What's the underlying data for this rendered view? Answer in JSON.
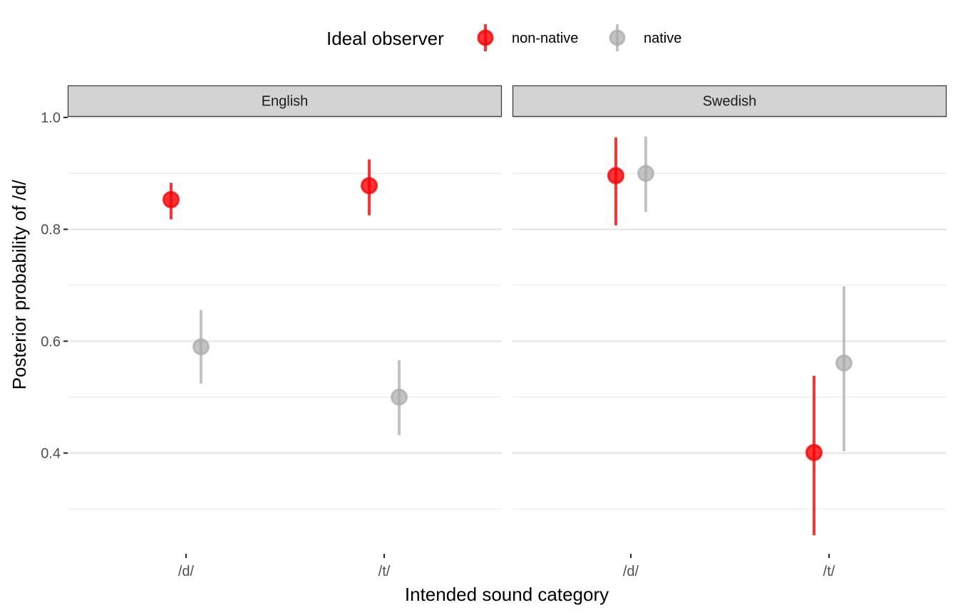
{
  "legend": {
    "title": "Ideal observer",
    "entries": [
      {
        "label": "non-native",
        "color": "#FF0000"
      },
      {
        "label": "native",
        "color": "#AAAAAA"
      }
    ]
  },
  "chart_data": {
    "type": "scatter",
    "subtype": "pointrange-faceted",
    "xlabel": "Intended sound category",
    "ylabel": "Posterior probability of /d/",
    "categories": [
      "/d/",
      "/t/"
    ],
    "ylim": [
      0.24,
      1.0
    ],
    "yticks": [
      0.4,
      0.6,
      0.8,
      1.0
    ],
    "ytick_labels": [
      "0.4",
      "0.6",
      "0.8",
      "1.0"
    ],
    "grid": true,
    "legend_position": "top",
    "panels": [
      {
        "label": "English",
        "series": [
          {
            "name": "non-native",
            "color": "#FF0000",
            "points": [
              {
                "category": "/d/",
                "y": 0.853,
                "ymin": 0.818,
                "ymax": 0.883
              },
              {
                "category": "/t/",
                "y": 0.878,
                "ymin": 0.825,
                "ymax": 0.925
              }
            ]
          },
          {
            "name": "native",
            "color": "#AAAAAA",
            "points": [
              {
                "category": "/d/",
                "y": 0.59,
                "ymin": 0.524,
                "ymax": 0.656
              },
              {
                "category": "/t/",
                "y": 0.5,
                "ymin": 0.432,
                "ymax": 0.566
              }
            ]
          }
        ]
      },
      {
        "label": "Swedish",
        "series": [
          {
            "name": "non-native",
            "color": "#FF0000",
            "points": [
              {
                "category": "/d/",
                "y": 0.896,
                "ymin": 0.807,
                "ymax": 0.964
              },
              {
                "category": "/t/",
                "y": 0.401,
                "ymin": 0.253,
                "ymax": 0.538
              }
            ]
          },
          {
            "name": "native",
            "color": "#AAAAAA",
            "points": [
              {
                "category": "/d/",
                "y": 0.9,
                "ymin": 0.831,
                "ymax": 0.966
              },
              {
                "category": "/t/",
                "y": 0.561,
                "ymin": 0.403,
                "ymax": 0.698
              }
            ]
          }
        ]
      }
    ]
  }
}
